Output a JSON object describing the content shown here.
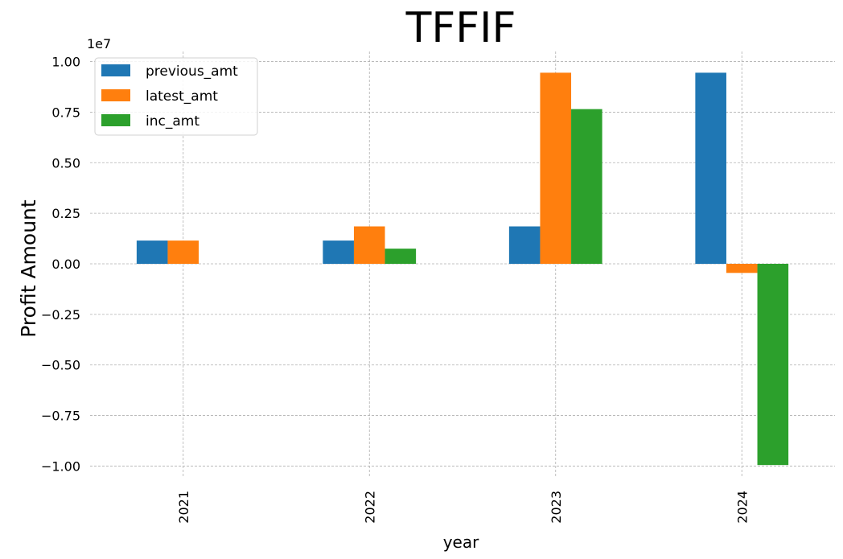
{
  "chart_data": {
    "type": "bar",
    "title": "TFFIF",
    "xlabel": "year",
    "ylabel": "Profit Amount",
    "y_offset_label": "1e7",
    "y_scale_factor": 10000000,
    "categories": [
      "2021",
      "2022",
      "2023",
      "2024"
    ],
    "series": [
      {
        "name": "previous_amt",
        "color": "#1f77b4",
        "values": [
          1150000,
          1150000,
          1850000,
          9450000
        ]
      },
      {
        "name": "latest_amt",
        "color": "#ff7f0e",
        "values": [
          1150000,
          1850000,
          9450000,
          -450000
        ]
      },
      {
        "name": "inc_amt",
        "color": "#2ca02c",
        "values": [
          0,
          750000,
          7650000,
          -9950000
        ]
      }
    ],
    "ylim": [
      -10500000,
      10500000
    ],
    "yticks": [
      -10000000,
      -7500000,
      -5000000,
      -2500000,
      0,
      2500000,
      5000000,
      7500000,
      10000000
    ],
    "ytick_labels": [
      "−1.00",
      "−0.75",
      "−0.50",
      "−0.25",
      "0.00",
      "0.25",
      "0.50",
      "0.75",
      "1.00"
    ],
    "grid": true,
    "legend_position": "top-left"
  }
}
